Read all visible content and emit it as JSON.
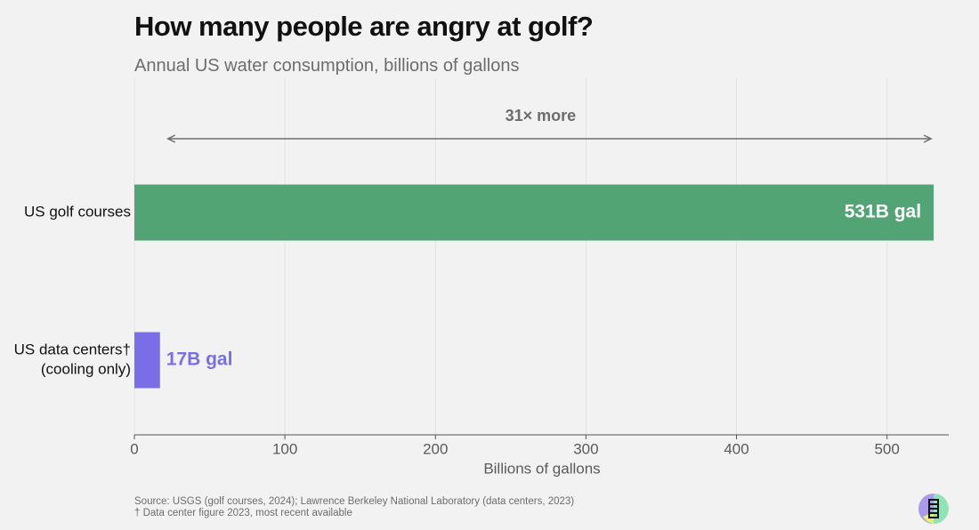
{
  "header": {
    "title": "How many people are angry at golf?",
    "subtitle": "Annual US water consumption, billions of gallons"
  },
  "colors": {
    "golf": "#53a474",
    "datacenter": "#7a6ee6",
    "grid": "#e2e2e2",
    "axis": "#555555",
    "annotation": "#6d6d6d"
  },
  "chart_data": {
    "type": "bar",
    "orientation": "horizontal",
    "categories": [
      {
        "lines": [
          "US golf courses"
        ]
      },
      {
        "lines": [
          "US data centers†",
          "(cooling only)"
        ]
      }
    ],
    "values": [
      531,
      17
    ],
    "data_labels": [
      "531B gal",
      "17B gal"
    ],
    "xlabel": "Billions of gallons",
    "xlim": [
      0,
      541
    ],
    "xticks": [
      0,
      100,
      200,
      300,
      400,
      500
    ],
    "grid": true,
    "annotation": {
      "text": "31× more",
      "from": 17,
      "to": 531
    }
  },
  "footer": {
    "source": "Source: USGS (golf courses, 2024); Lawrence Berkeley National Laboratory (data centers, 2023)",
    "note": "† Data center figure 2023, most recent available"
  },
  "logo": {
    "icon": "brand-logo-icon"
  }
}
